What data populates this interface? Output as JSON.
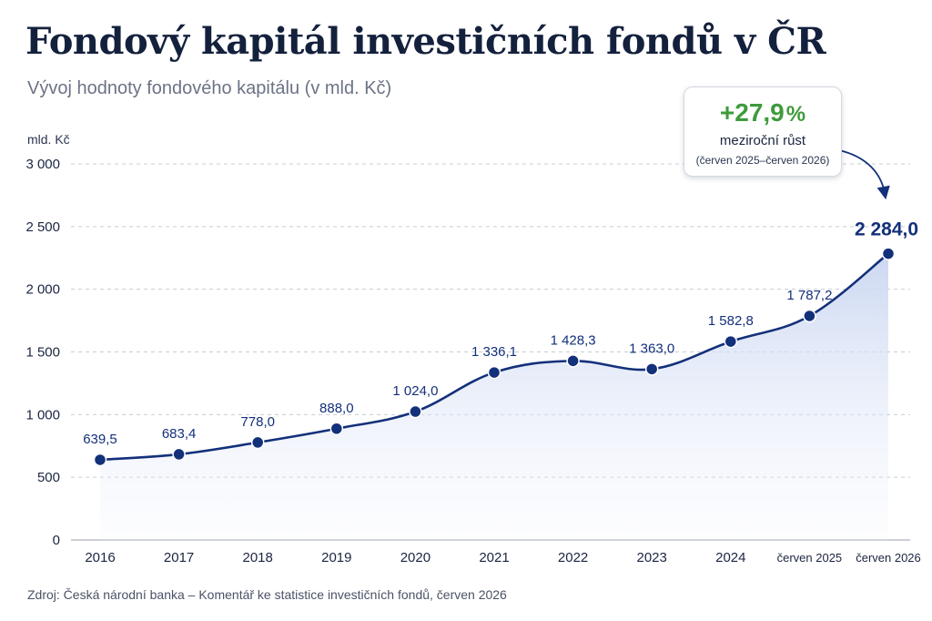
{
  "title": "Fondový kapitál investičních fondů v ČR",
  "subtitle": "Vývoj hodnoty fondového kapitálu (v mld. Kč)",
  "unit_label": "mld. Kč",
  "callout": {
    "value": "+27,9",
    "value_unit": "%",
    "label": "meziroční růst",
    "period": "(červen 2025–červen 2026)"
  },
  "source": "Zdroj: Česká národní banka – Komentář ke statistice investičních fondů, červen 2026",
  "colors": {
    "line": "#13307a",
    "area_top": "#c9d6f1",
    "grid": "#c8ccd4",
    "growth": "#3f9a3c"
  },
  "chart_data": {
    "type": "area",
    "categories": [
      "2016",
      "2017",
      "2018",
      "2019",
      "2020",
      "2021",
      "2022",
      "2023",
      "2024",
      "červen 2025",
      "červen 2026"
    ],
    "values": [
      639.5,
      683.4,
      778.0,
      888.0,
      1024.0,
      1336.1,
      1428.3,
      1363.0,
      1582.8,
      1787.2,
      2284.0
    ],
    "value_labels": [
      "639,5",
      "683,4",
      "778,0",
      "888,0",
      "1 024,0",
      "1 336,1",
      "1 428,3",
      "1 363,0",
      "1 582,8",
      "1 787,2",
      "2 284,0"
    ],
    "y_ticks": [
      0,
      500,
      1000,
      1500,
      2000,
      2500,
      3000
    ],
    "y_tick_labels": [
      "0",
      "500",
      "1 000",
      "1 500",
      "2 000",
      "2 500",
      "3 000"
    ],
    "ylim": [
      0,
      3000
    ],
    "ylabel": "mld. Kč",
    "grid": true,
    "legend": "none"
  }
}
